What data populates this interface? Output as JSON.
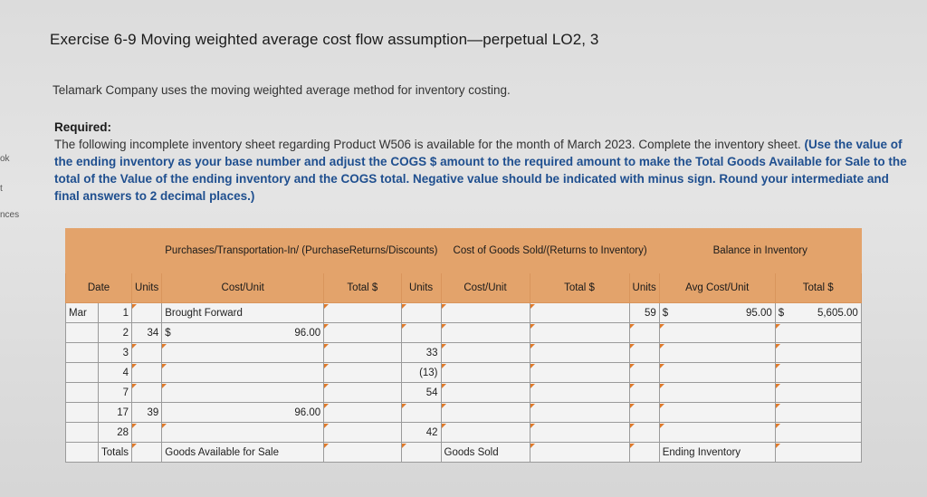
{
  "sidebar": [
    "ok",
    "t",
    "nces"
  ],
  "title": "Exercise 6-9 Moving weighted average cost flow assumption—perpetual LO2, 3",
  "intro": "Telamark Company uses the moving weighted average method for inventory costing.",
  "required": {
    "label": "Required:",
    "text": "The following incomplete inventory sheet regarding Product W506 is available for the month of March 2023. Complete the inventory sheet.",
    "instruction": "(Use the value of the ending inventory as your base number and adjust the COGS $ amount to the required amount to make the Total Goods Available for Sale to the total of the Value of the ending inventory and the COGS total. Negative value should be indicated with minus sign. Round your intermediate and final answers to 2 decimal places.)"
  },
  "table": {
    "group_headers": [
      "Purchases/Transportation-In/ (PurchaseReturns/Discounts)",
      "Cost of Goods Sold/(Returns to Inventory)",
      "Balance in Inventory"
    ],
    "columns": [
      "Date",
      "Units",
      "Cost/Unit",
      "Total $",
      "Units",
      "Cost/Unit",
      "Total $",
      "Units",
      "Avg Cost/Unit",
      "Total $"
    ],
    "rows": [
      [
        "Mar",
        "1",
        null,
        "Brought Forward",
        null,
        null,
        null,
        null,
        "59",
        {
          "sign": "$",
          "amount": "95.00"
        },
        {
          "sign": "$",
          "amount": "5,605.00"
        }
      ],
      [
        null,
        "2",
        "34",
        {
          "sign": "$",
          "amount": "96.00"
        },
        null,
        null,
        null,
        null,
        null,
        null,
        null
      ],
      [
        null,
        "3",
        null,
        null,
        null,
        "33",
        null,
        null,
        null,
        null,
        null
      ],
      [
        null,
        "4",
        null,
        null,
        null,
        "(13)",
        null,
        null,
        null,
        null,
        null
      ],
      [
        null,
        "7",
        null,
        null,
        null,
        "54",
        null,
        null,
        null,
        null,
        null
      ],
      [
        null,
        "17",
        "39",
        "96.00",
        null,
        null,
        null,
        null,
        null,
        null,
        null
      ],
      [
        null,
        "28",
        null,
        null,
        null,
        "42",
        null,
        null,
        null,
        null,
        null
      ],
      [
        null,
        "Totals",
        null,
        "Goods Available for Sale",
        null,
        null,
        "Goods Sold",
        null,
        null,
        "Ending Inventory",
        null
      ]
    ]
  }
}
